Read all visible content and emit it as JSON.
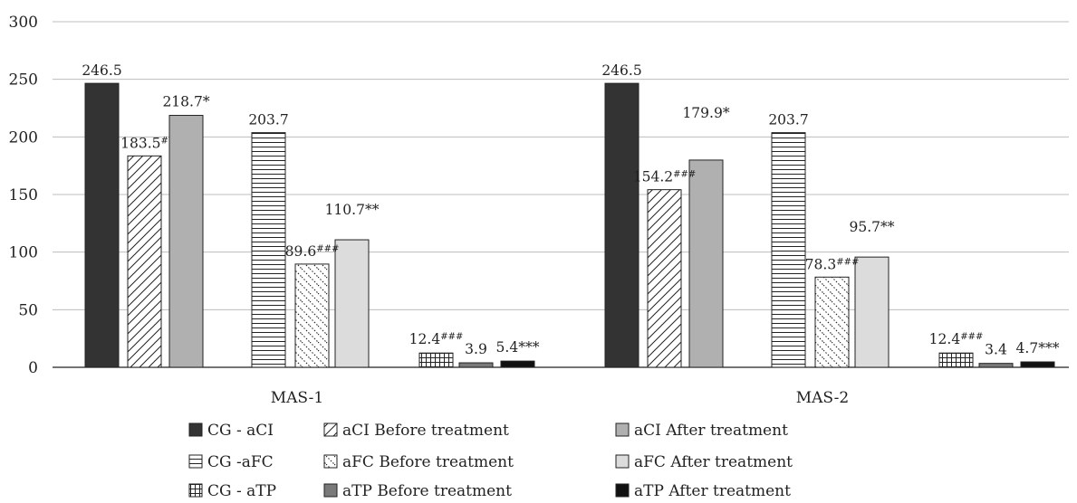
{
  "chart_data": {
    "type": "bar",
    "title": "",
    "xlabel": "",
    "ylabel": "",
    "ylim": [
      0,
      300
    ],
    "yticks": [
      0,
      50,
      100,
      150,
      200,
      250,
      300
    ],
    "grid": true,
    "legend_position": "bottom",
    "categories": [
      "MAS-1",
      "MAS-2"
    ],
    "bar_groups": [
      {
        "name": "aCI",
        "series": [
          {
            "name": "CG - aCI",
            "values": [
              246.5,
              246.5
            ],
            "labels": [
              "246.5",
              "246.5"
            ],
            "color": "#333333",
            "pattern": "solid"
          },
          {
            "name": "aCI Before treatment",
            "values": [
              183.5,
              154.2
            ],
            "labels": [
              "183.5#",
              "154.2###"
            ],
            "color": "#ffffff",
            "pattern": "diagonal"
          },
          {
            "name": "aCI After treatment",
            "values": [
              218.7,
              179.9
            ],
            "labels": [
              "218.7*",
              "179.9*"
            ],
            "color": "#b0b0b0",
            "pattern": "solid"
          }
        ]
      },
      {
        "name": "aFC",
        "series": [
          {
            "name": "CG -aFC",
            "values": [
              203.7,
              203.7
            ],
            "labels": [
              "203.7",
              "203.7"
            ],
            "color": "#ffffff",
            "pattern": "horizontal"
          },
          {
            "name": "aFC Before treatment",
            "values": [
              89.6,
              78.3
            ],
            "labels": [
              "89.6###",
              "78.3###"
            ],
            "color": "#ffffff",
            "pattern": "dotted-diagonal"
          },
          {
            "name": "aFC After treatment",
            "values": [
              110.7,
              95.7
            ],
            "labels": [
              "110.7**",
              "95.7**"
            ],
            "color": "#dcdcdc",
            "pattern": "solid"
          }
        ]
      },
      {
        "name": "aTP",
        "series": [
          {
            "name": "CG - aTP",
            "values": [
              12.4,
              12.4
            ],
            "labels": [
              "12.4###",
              "12.4###"
            ],
            "color": "#ffffff",
            "pattern": "grid"
          },
          {
            "name": "aTP Before treatment",
            "values": [
              3.9,
              3.4
            ],
            "labels": [
              "3.9",
              "3.4"
            ],
            "color": "#7a7a7a",
            "pattern": "solid"
          },
          {
            "name": "aTP After treatment",
            "values": [
              5.4,
              4.7
            ],
            "labels": [
              "5.4***",
              "4.7***"
            ],
            "color": "#111111",
            "pattern": "solid"
          }
        ]
      }
    ],
    "legend": [
      "CG - aCI",
      "aCI Before treatment",
      "aCI After treatment",
      "CG -aFC",
      "aFC Before treatment",
      "aFC After treatment",
      "CG - aTP",
      "aTP Before treatment",
      "aTP After treatment"
    ]
  }
}
